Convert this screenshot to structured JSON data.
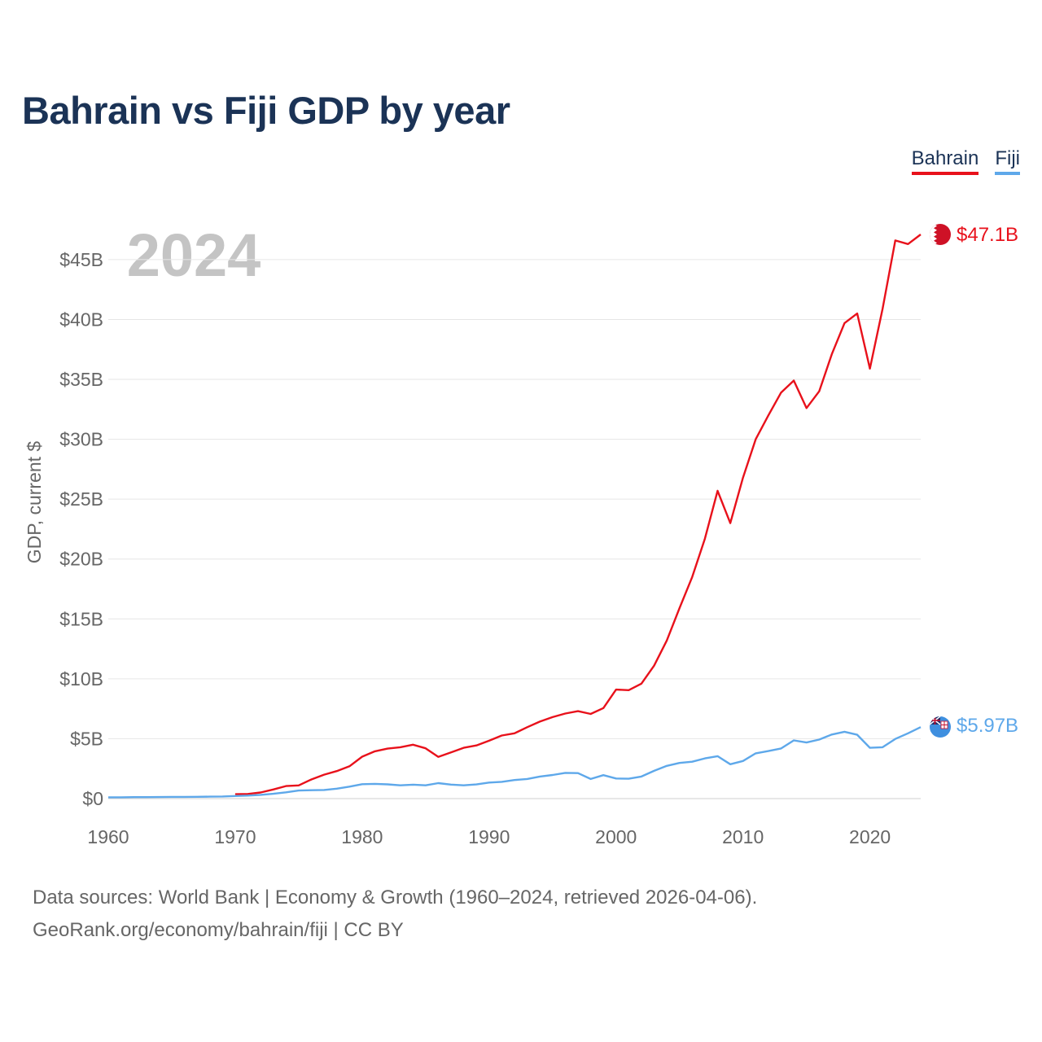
{
  "page": {
    "title": "Bahrain vs Fiji GDP by year",
    "year_watermark": "2024",
    "footer_line1": "Data sources: World Bank | Economy & Growth (1960–2024, retrieved 2026-04-06).",
    "footer_line2": "GeoRank.org/economy/bahrain/fiji | CC BY"
  },
  "legend": [
    {
      "label": "Bahrain",
      "color": "#e8111b"
    },
    {
      "label": "Fiji",
      "color": "#5ea8ea"
    }
  ],
  "chart_data": {
    "type": "line",
    "title": "Bahrain vs Fiji GDP by year",
    "xlabel": "",
    "ylabel": "GDP, current $",
    "xlim": [
      1960,
      2024
    ],
    "ylim": [
      0,
      47.1
    ],
    "x_ticks": [
      1960,
      1970,
      1980,
      1990,
      2000,
      2010,
      2020
    ],
    "y_ticks": [
      {
        "value": 0,
        "label": "$0"
      },
      {
        "value": 5,
        "label": "$5B"
      },
      {
        "value": 10,
        "label": "$10B"
      },
      {
        "value": 15,
        "label": "$15B"
      },
      {
        "value": 20,
        "label": "$20B"
      },
      {
        "value": 25,
        "label": "$25B"
      },
      {
        "value": 30,
        "label": "$30B"
      },
      {
        "value": 35,
        "label": "$35B"
      },
      {
        "value": 40,
        "label": "$40B"
      },
      {
        "value": 45,
        "label": "$45B"
      }
    ],
    "units": "billions of current US$",
    "series": [
      {
        "name": "Bahrain",
        "color": "#e8111b",
        "end_label": "$47.1B",
        "x": [
          1970,
          1971,
          1972,
          1973,
          1974,
          1975,
          1976,
          1977,
          1978,
          1979,
          1980,
          1981,
          1982,
          1983,
          1984,
          1985,
          1986,
          1987,
          1988,
          1989,
          1990,
          1991,
          1992,
          1993,
          1994,
          1995,
          1996,
          1997,
          1998,
          1999,
          2000,
          2001,
          2002,
          2003,
          2004,
          2005,
          2006,
          2007,
          2008,
          2009,
          2010,
          2011,
          2012,
          2013,
          2014,
          2015,
          2016,
          2017,
          2018,
          2019,
          2020,
          2021,
          2022,
          2023,
          2024
        ],
        "values": [
          0.37,
          0.39,
          0.51,
          0.76,
          1.05,
          1.1,
          1.6,
          2.0,
          2.3,
          2.7,
          3.5,
          3.95,
          4.17,
          4.29,
          4.5,
          4.2,
          3.49,
          3.86,
          4.24,
          4.44,
          4.83,
          5.27,
          5.45,
          5.96,
          6.43,
          6.8,
          7.1,
          7.3,
          7.07,
          7.56,
          9.1,
          9.05,
          9.6,
          11.1,
          13.2,
          15.9,
          18.5,
          21.7,
          25.7,
          23.0,
          26.8,
          30.0,
          32.0,
          33.9,
          34.9,
          32.6,
          34.0,
          37.1,
          39.7,
          40.5,
          35.9,
          40.9,
          46.6,
          46.3,
          47.1
        ]
      },
      {
        "name": "Fiji",
        "color": "#5ea8ea",
        "end_label": "$5.97B",
        "x": [
          1960,
          1961,
          1962,
          1963,
          1964,
          1965,
          1966,
          1967,
          1968,
          1969,
          1970,
          1971,
          1972,
          1973,
          1974,
          1975,
          1976,
          1977,
          1978,
          1979,
          1980,
          1981,
          1982,
          1983,
          1984,
          1985,
          1986,
          1987,
          1988,
          1989,
          1990,
          1991,
          1992,
          1993,
          1994,
          1995,
          1996,
          1997,
          1998,
          1999,
          2000,
          2001,
          2002,
          2003,
          2004,
          2005,
          2006,
          2007,
          2008,
          2009,
          2010,
          2011,
          2012,
          2013,
          2014,
          2015,
          2016,
          2017,
          2018,
          2019,
          2020,
          2021,
          2022,
          2023,
          2024
        ],
        "values": [
          0.11,
          0.11,
          0.12,
          0.12,
          0.13,
          0.14,
          0.14,
          0.15,
          0.16,
          0.18,
          0.22,
          0.25,
          0.31,
          0.4,
          0.52,
          0.67,
          0.7,
          0.72,
          0.83,
          1.0,
          1.2,
          1.23,
          1.19,
          1.11,
          1.16,
          1.11,
          1.29,
          1.17,
          1.11,
          1.18,
          1.34,
          1.4,
          1.55,
          1.64,
          1.84,
          1.97,
          2.15,
          2.13,
          1.64,
          1.96,
          1.68,
          1.66,
          1.84,
          2.32,
          2.73,
          2.98,
          3.08,
          3.36,
          3.54,
          2.87,
          3.14,
          3.78,
          3.97,
          4.19,
          4.86,
          4.68,
          4.93,
          5.35,
          5.58,
          5.33,
          4.24,
          4.29,
          4.98,
          5.45,
          5.97
        ]
      }
    ]
  }
}
